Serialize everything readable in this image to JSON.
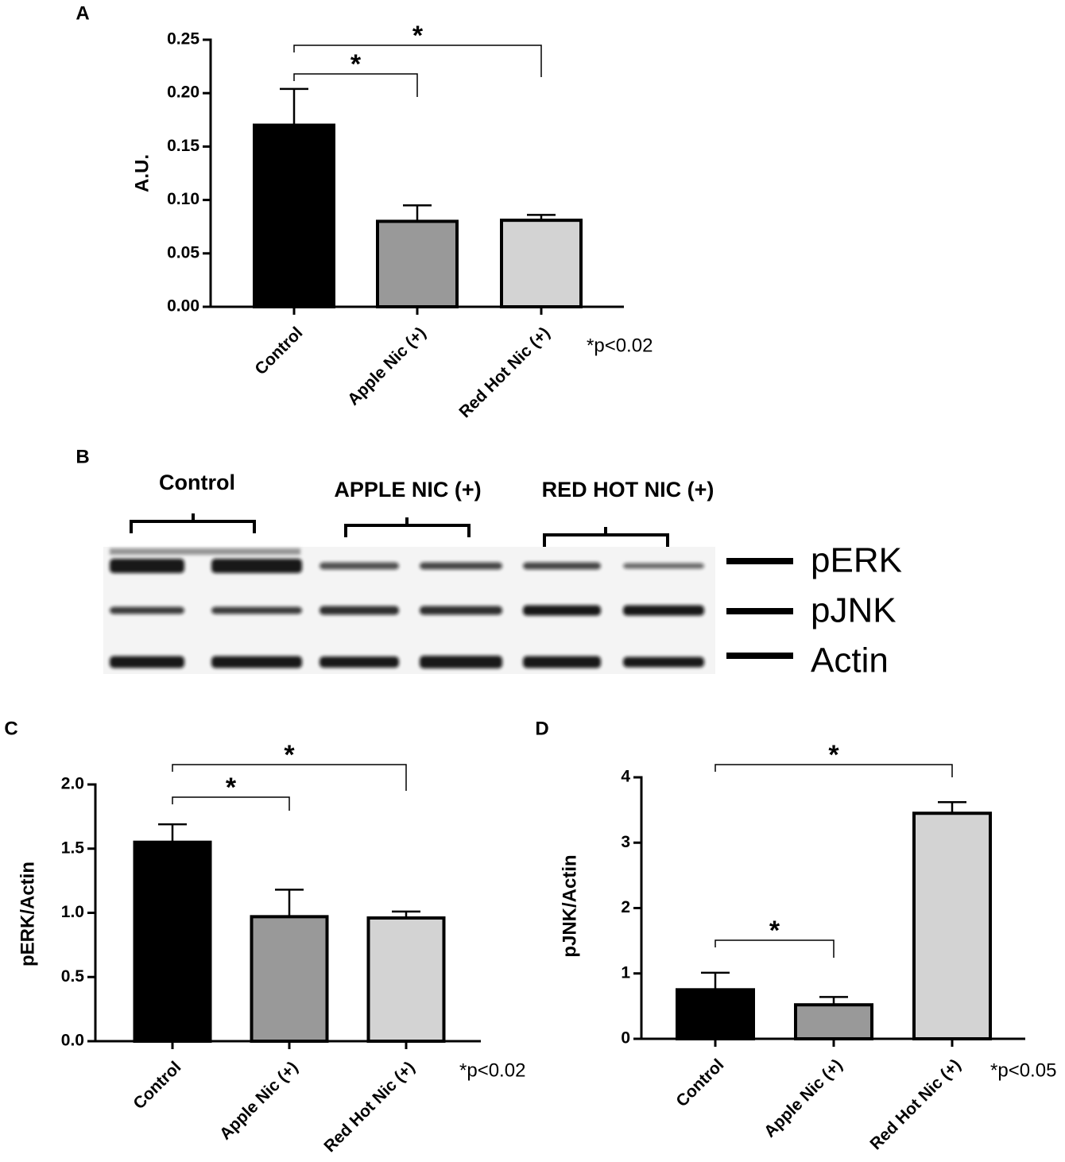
{
  "chart_data": [
    {
      "type": "bar",
      "panel_label": "A",
      "ylabel": "A.U.",
      "annotation": "*p<0.02",
      "categories": [
        "Control",
        "Apple Nic (+)",
        "Red Hot Nic (+)"
      ],
      "values": [
        0.17,
        0.08,
        0.081
      ],
      "errors": [
        0.034,
        0.015,
        0.005
      ],
      "colors": [
        "#000000",
        "#999999",
        "#d3d3d3"
      ],
      "ylim": [
        0,
        0.25
      ],
      "yticks": [
        {
          "value": 0,
          "label": "0.00"
        },
        {
          "value": 0.05,
          "label": "0.05"
        },
        {
          "value": 0.1,
          "label": "0.10"
        },
        0.15,
        {
          "value": 0.2,
          "label": "0.20"
        },
        0.25
      ],
      "comparisons": [
        {
          "between": [
            0,
            1
          ],
          "label": "*"
        },
        {
          "between": [
            0,
            2
          ],
          "label": "*"
        }
      ]
    },
    {
      "type": "bar",
      "panel_label": "C",
      "ylabel": "pERK/Actin",
      "annotation": "*p<0.02",
      "categories": [
        "Control",
        "Apple Nic (+)",
        "Red Hot Nic (+)"
      ],
      "values": [
        1.55,
        0.97,
        0.96
      ],
      "errors": [
        0.14,
        0.21,
        0.05
      ],
      "colors": [
        "#000000",
        "#999999",
        "#d3d3d3"
      ],
      "ylim": [
        0,
        2
      ],
      "yticks": [
        {
          "value": 0,
          "label": "0.0"
        },
        0.5,
        {
          "value": 1,
          "label": "1.0"
        },
        1.5,
        {
          "value": 2,
          "label": "2.0"
        }
      ],
      "comparisons": [
        {
          "between": [
            0,
            1
          ],
          "label": "*"
        },
        {
          "between": [
            0,
            2
          ],
          "label": "*"
        }
      ]
    },
    {
      "type": "bar",
      "panel_label": "D",
      "ylabel": "pJNK/Actin",
      "annotation": "*p<0.05",
      "categories": [
        "Control",
        "Apple Nic (+)",
        "Red Hot Nic (+)"
      ],
      "values": [
        0.75,
        0.52,
        3.45
      ],
      "errors": [
        0.26,
        0.12,
        0.17
      ],
      "colors": [
        "#000000",
        "#999999",
        "#d3d3d3"
      ],
      "ylim": [
        0,
        4
      ],
      "yticks": [
        0,
        1,
        2,
        3,
        4
      ],
      "comparisons": [
        {
          "between": [
            0,
            1
          ],
          "label": "*"
        },
        {
          "between": [
            0,
            2
          ],
          "label": "*"
        }
      ]
    }
  ],
  "blot": {
    "panel_label": "B",
    "groups": [
      "Control",
      "APPLE NIC (+)",
      "RED HOT NIC (+)"
    ],
    "proteins": [
      "pERK",
      "pJNK",
      "Actin"
    ]
  }
}
